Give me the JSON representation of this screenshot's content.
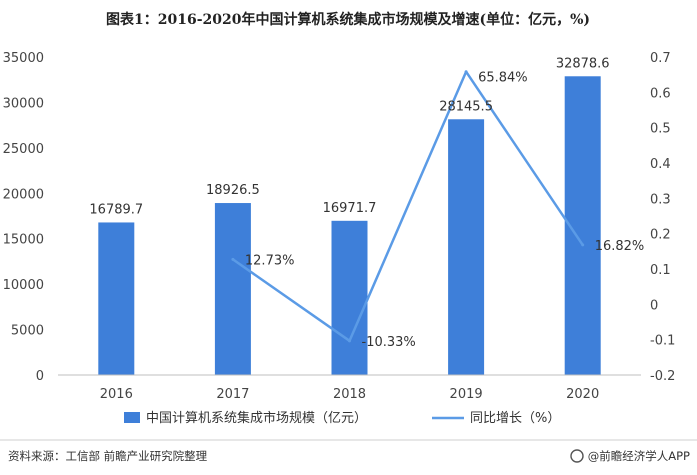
{
  "chart_data": {
    "type": "bar",
    "title": "图表1：2016-2020年中国计算机系统集成市场规模及增速(单位：亿元，%)",
    "categories": [
      "2016",
      "2017",
      "2018",
      "2019",
      "2020"
    ],
    "series": [
      {
        "name": "中国计算机系统集成市场规模（亿元）",
        "type": "bar",
        "axis": "left",
        "color": "#3e7fd9",
        "values": [
          16789.7,
          18926.5,
          16971.7,
          28145.5,
          32878.6
        ],
        "labels": [
          "16789.7",
          "18926.5",
          "16971.7",
          "28145.5",
          "32878.6"
        ]
      },
      {
        "name": "同比增长（%）",
        "type": "line",
        "axis": "right",
        "color": "#5b9be6",
        "values": [
          null,
          0.1273,
          -0.1033,
          0.6584,
          0.1682
        ],
        "labels": [
          "",
          "12.73%",
          "-10.33%",
          "65.84%",
          "16.82%"
        ]
      }
    ],
    "y_left": {
      "min": 0,
      "max": 35000,
      "step": 5000,
      "ticks": [
        "0",
        "5000",
        "10000",
        "15000",
        "20000",
        "25000",
        "30000",
        "35000"
      ]
    },
    "y_right": {
      "min": -0.2,
      "max": 0.7,
      "step": 0.1,
      "ticks": [
        "-0.2",
        "-0.1",
        "0",
        "0.1",
        "0.2",
        "0.3",
        "0.4",
        "0.5",
        "0.6",
        "0.7"
      ]
    },
    "grid": false,
    "legend_position": "bottom"
  },
  "source": "资料来源：工信部 前瞻产业研究院整理",
  "brand": "@前瞻经济学人APP"
}
